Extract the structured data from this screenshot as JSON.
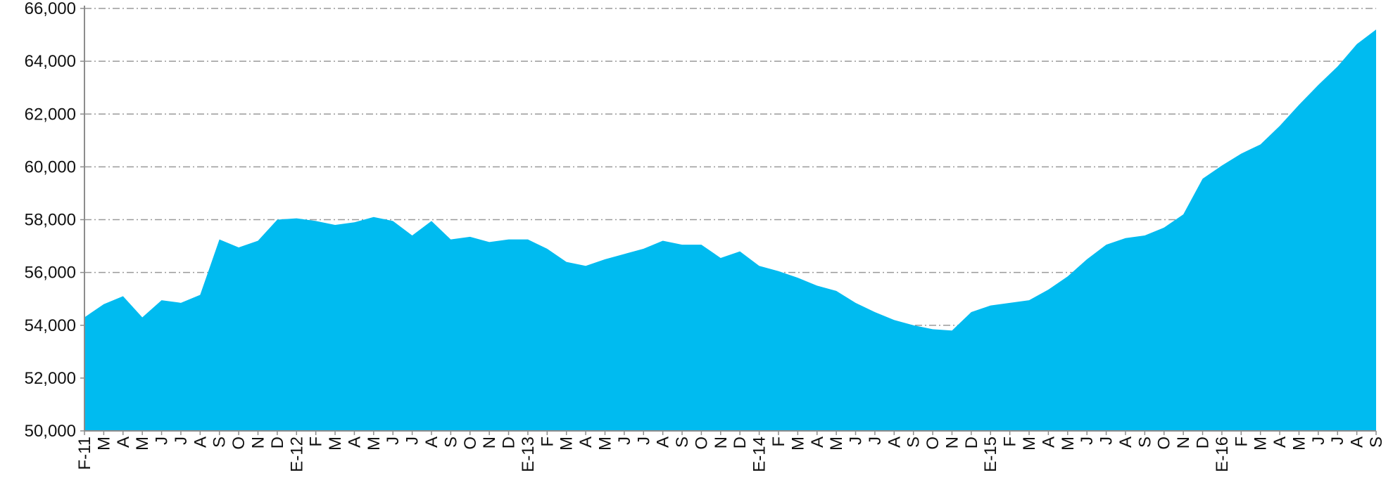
{
  "chart_data": {
    "type": "area",
    "title": "",
    "xlabel": "",
    "ylabel": "",
    "ylim": [
      50000,
      66000
    ],
    "grid": true,
    "legend": "none",
    "y_ticks": [
      "50,000",
      "52,000",
      "54,000",
      "56,000",
      "58,000",
      "60,000",
      "62,000",
      "64,000",
      "66,000"
    ],
    "y_tick_values": [
      50000,
      52000,
      54000,
      56000,
      58000,
      60000,
      62000,
      64000,
      66000
    ],
    "categories": [
      "F-11",
      "M",
      "A",
      "M",
      "J",
      "J",
      "A",
      "S",
      "O",
      "N",
      "D",
      "E-12",
      "F",
      "M",
      "A",
      "M",
      "J",
      "J",
      "A",
      "S",
      "O",
      "N",
      "D",
      "E-13",
      "F",
      "M",
      "A",
      "M",
      "J",
      "J",
      "A",
      "S",
      "O",
      "N",
      "D",
      "E-14",
      "F",
      "M",
      "A",
      "M",
      "J",
      "J",
      "A",
      "S",
      "O",
      "N",
      "D",
      "E-15",
      "F",
      "M",
      "A",
      "M",
      "J",
      "J",
      "A",
      "S",
      "O",
      "N",
      "D",
      "E-16",
      "F",
      "M",
      "A",
      "M",
      "J",
      "J",
      "A",
      "S"
    ],
    "values": [
      54300,
      54800,
      55100,
      54300,
      54950,
      54850,
      55150,
      57250,
      56950,
      57200,
      58000,
      58050,
      57950,
      57800,
      57900,
      58100,
      57950,
      57400,
      57950,
      57250,
      57350,
      57150,
      57250,
      57250,
      56900,
      56400,
      56250,
      56500,
      56700,
      56900,
      57200,
      57050,
      57050,
      56550,
      56800,
      56250,
      56050,
      55800,
      55500,
      55300,
      54850,
      54500,
      54200,
      54000,
      53850,
      53800,
      54500,
      54750,
      54850,
      54950,
      55350,
      55850,
      56500,
      57050,
      57300,
      57400,
      57700,
      58200,
      59550,
      60050,
      60500,
      60850,
      61550,
      62350,
      63100,
      63800,
      64650,
      65200
    ],
    "series": [
      {
        "name": "",
        "color": "#00BBF0"
      }
    ],
    "colors": {
      "area": "#00BBF0",
      "grid": "#9a9a9a",
      "axis": "#8c8c8c",
      "text": "#111111"
    }
  }
}
